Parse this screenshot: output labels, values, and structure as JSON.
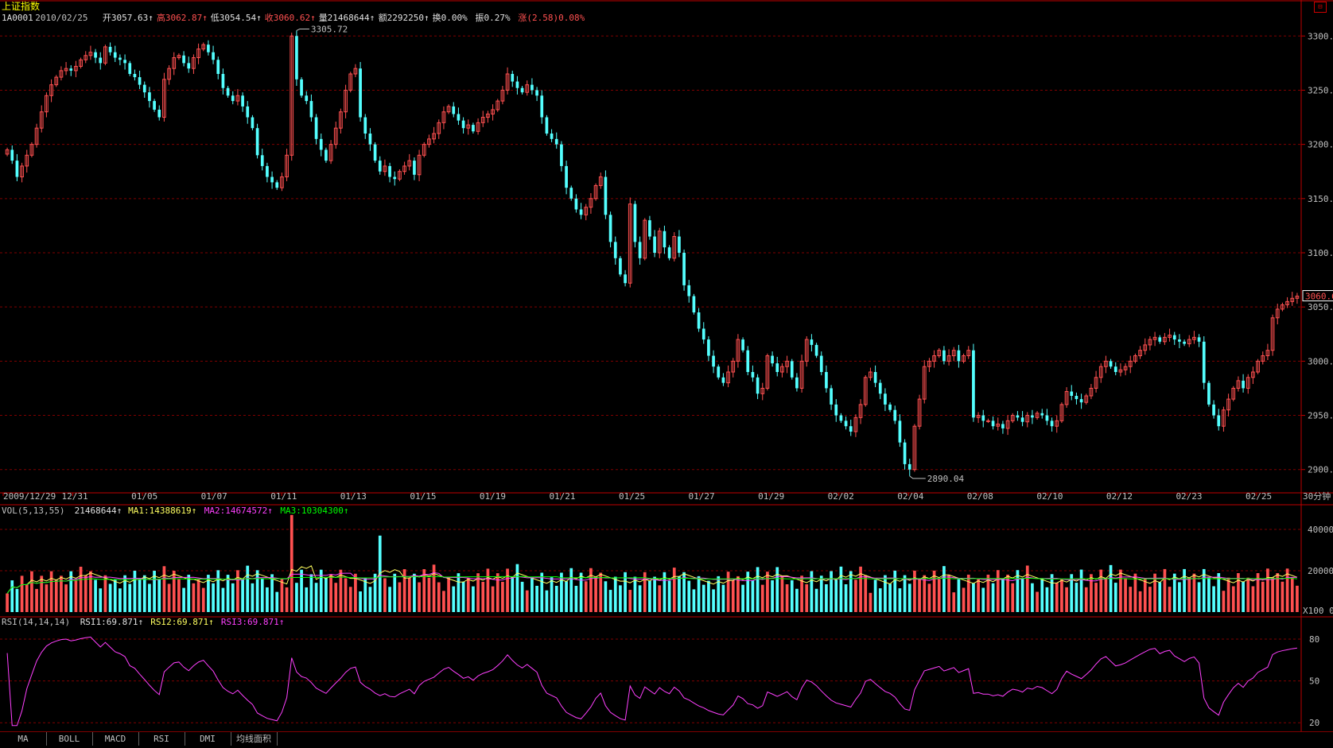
{
  "header": {
    "title": "上证指数",
    "line": [
      {
        "text": "1A0001",
        "color": "#e0e0e0"
      },
      {
        "text": " 2010/02/25 ",
        "color": "#c0c0c0"
      },
      {
        "text": "开3057.63↑",
        "color": "#e0e0e0"
      },
      {
        "text": "高3062.87↑",
        "color": "#ff5050"
      },
      {
        "text": "低3054.54↑",
        "color": "#e0e0e0"
      },
      {
        "text": "收3060.62↑",
        "color": "#ff5050"
      },
      {
        "text": "量21468644↑",
        "color": "#e0e0e0"
      },
      {
        "text": "额2292250↑",
        "color": "#e0e0e0"
      },
      {
        "text": "换0.00% ",
        "color": "#e0e0e0"
      },
      {
        "text": "振0.27% ",
        "color": "#e0e0e0"
      },
      {
        "text": "涨(2.58)0.08%",
        "color": "#ff5050"
      }
    ]
  },
  "colors": {
    "up": "#ff5050",
    "down": "#54ffff",
    "axis": "#c00000",
    "grid": "#800000",
    "ma1": "#ffffff",
    "ma2": "#ff40ff",
    "ma3": "#00ff00",
    "rsi": "#ff40ff",
    "text": "#c0c0c0"
  },
  "price_axis": {
    "ticks": [
      "3300.0",
      "3250.0",
      "3200.0",
      "3150.0",
      "3100.0",
      "3050.0",
      "3000.0",
      "2950.0",
      "2900.0"
    ],
    "current": "3060.6"
  },
  "annotations": {
    "high": "3305.72",
    "low": "2890.04"
  },
  "date_axis": {
    "labels": [
      "2009/12/29",
      "12/31",
      "01/05",
      "01/07",
      "01/11",
      "01/13",
      "01/15",
      "01/19",
      "01/21",
      "01/25",
      "01/27",
      "01/29",
      "02/02",
      "02/04",
      "02/08",
      "02/10",
      "02/12",
      "02/23",
      "02/25"
    ],
    "period": "30分钟"
  },
  "vol_panel": {
    "legend": [
      {
        "text": "VOL(5,13,55) ",
        "color": "#c0c0c0"
      },
      {
        "text": "21468644↑",
        "color": "#e0e0e0"
      },
      {
        "text": "MA1:14388619↑",
        "color": "#ffff60"
      },
      {
        "text": "MA2:14674572↑",
        "color": "#ff40ff"
      },
      {
        "text": "MA3:10304300↑",
        "color": "#00ff00"
      }
    ],
    "ticks": [
      "400000",
      "200000",
      "X100 0"
    ]
  },
  "rsi_panel": {
    "legend": [
      {
        "text": "RSI(14,14,14) ",
        "color": "#c0c0c0"
      },
      {
        "text": "RSI1:69.871↑",
        "color": "#e0e0e0"
      },
      {
        "text": "RSI2:69.871↑",
        "color": "#ffff60"
      },
      {
        "text": "RSI3:69.871↑",
        "color": "#ff40ff"
      }
    ],
    "ticks": [
      "80",
      "50",
      "20"
    ]
  },
  "tabs": [
    "MA",
    "BOLL",
    "MACD",
    "RSI",
    "DMI",
    "均线面积"
  ],
  "chart_data": {
    "type": "candlestick",
    "title": "上证指数",
    "ylim": [
      2880,
      3320
    ],
    "series": [
      {
        "name": "price",
        "values": [
          3195,
          3185,
          3170,
          3180,
          3190,
          3200,
          3215,
          3230,
          3245,
          3255,
          3262,
          3268,
          3270,
          3268,
          3272,
          3278,
          3282,
          3285,
          3280,
          3275,
          3290,
          3285,
          3280,
          3278,
          3275,
          3265,
          3262,
          3255,
          3248,
          3240,
          3232,
          3225,
          3260,
          3270,
          3280,
          3282,
          3275,
          3270,
          3280,
          3288,
          3292,
          3285,
          3278,
          3265,
          3252,
          3245,
          3240,
          3245,
          3235,
          3225,
          3215,
          3190,
          3180,
          3170,
          3165,
          3160,
          3170,
          3190,
          3300,
          3260,
          3245,
          3240,
          3225,
          3205,
          3195,
          3185,
          3200,
          3215,
          3230,
          3250,
          3265,
          3270,
          3225,
          3210,
          3200,
          3185,
          3175,
          3180,
          3170,
          3168,
          3175,
          3180,
          3185,
          3172,
          3190,
          3200,
          3205,
          3210,
          3220,
          3230,
          3235,
          3228,
          3222,
          3215,
          3218,
          3212,
          3220,
          3225,
          3228,
          3232,
          3240,
          3250,
          3265,
          3258,
          3252,
          3248,
          3255,
          3250,
          3245,
          3225,
          3210,
          3205,
          3200,
          3180,
          3160,
          3150,
          3140,
          3135,
          3142,
          3150,
          3162,
          3170,
          3135,
          3110,
          3095,
          3080,
          3072,
          3145,
          3110,
          3095,
          3130,
          3115,
          3100,
          3120,
          3105,
          3095,
          3115,
          3100,
          3070,
          3060,
          3045,
          3030,
          3020,
          3005,
          2995,
          2985,
          2980,
          2990,
          3000,
          3020,
          3010,
          2990,
          2985,
          2970,
          2975,
          3005,
          2998,
          2990,
          2995,
          3000,
          2985,
          2975,
          3000,
          3020,
          3015,
          3005,
          2990,
          2975,
          2960,
          2950,
          2945,
          2940,
          2935,
          2948,
          2960,
          2985,
          2990,
          2980,
          2970,
          2960,
          2955,
          2945,
          2925,
          2905,
          2900,
          2940,
          2965,
          2995,
          3000,
          3005,
          3010,
          3000,
          3005,
          3010,
          3000,
          3005,
          3010,
          2948,
          2950,
          2945,
          2945,
          2940,
          2942,
          2938,
          2945,
          2950,
          2948,
          2944,
          2950,
          2948,
          2952,
          2950,
          2945,
          2940,
          2945,
          2960,
          2972,
          2968,
          2965,
          2962,
          2968,
          2975,
          2985,
          2995,
          3000,
          2995,
          2990,
          2992,
          2995,
          3000,
          3005,
          3010,
          3015,
          3020,
          3022,
          3018,
          3022,
          3024,
          3020,
          3018,
          3016,
          3020,
          3022,
          3018,
          2980,
          2960,
          2950,
          2940,
          2955,
          2965,
          2975,
          2982,
          2975,
          2985,
          2990,
          3000,
          3005,
          3010,
          3040,
          3048,
          3052,
          3055,
          3058,
          3060
        ]
      }
    ]
  }
}
